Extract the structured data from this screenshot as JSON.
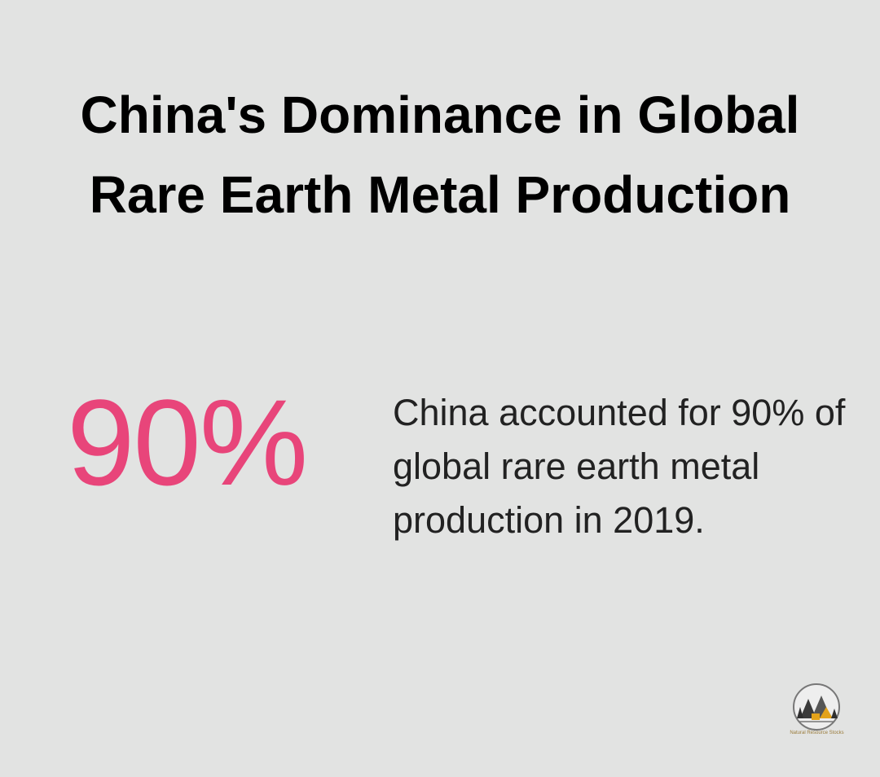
{
  "title": "China's Dominance in Global Rare Earth Metal Production",
  "stat": {
    "value": "90%",
    "description": "China accounted for 90% of global rare earth metal production in 2019."
  },
  "logo": {
    "label": "Natural Resource Stocks"
  }
}
